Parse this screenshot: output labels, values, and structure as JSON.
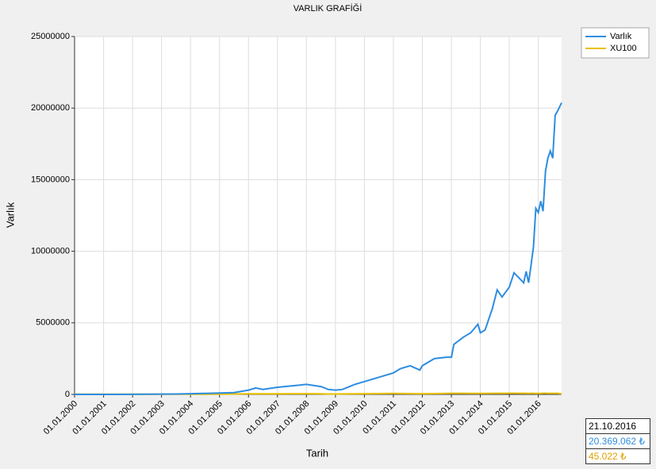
{
  "chart_data": {
    "type": "line",
    "title": "VARLIK GRAFİĞİ",
    "x_label": "Tarih",
    "y_label": "Varlık",
    "x": [
      "01.01.2000",
      "01.07.2000",
      "01.01.2001",
      "01.07.2001",
      "01.01.2002",
      "01.07.2002",
      "01.01.2003",
      "01.07.2003",
      "01.01.2004",
      "01.07.2004",
      "01.01.2005",
      "01.07.2005",
      "01.01.2006",
      "01.04.2006",
      "01.07.2006",
      "01.01.2007",
      "01.07.2007",
      "01.01.2008",
      "01.07.2008",
      "01.10.2008",
      "01.01.2009",
      "01.04.2009",
      "01.09.2009",
      "01.01.2010",
      "01.07.2010",
      "01.01.2011",
      "01.04.2011",
      "01.08.2011",
      "01.12.2011",
      "01.01.2012",
      "01.06.2012",
      "01.11.2012",
      "01.01.2013",
      "01.02.2013",
      "01.06.2013",
      "01.09.2013",
      "01.12.2013",
      "01.01.2014",
      "01.03.2014",
      "01.06.2014",
      "01.08.2014",
      "01.10.2014",
      "01.01.2015",
      "01.03.2015",
      "01.07.2015",
      "01.08.2015",
      "01.09.2015",
      "01.10.2015",
      "01.11.2015",
      "01.12.2015",
      "01.01.2016",
      "01.02.2016",
      "01.03.2016",
      "01.04.2016",
      "01.05.2016",
      "01.06.2016",
      "01.07.2016",
      "01.08.2016",
      "01.09.2016",
      "21.10.2016"
    ],
    "series": [
      {
        "name": "Varlık",
        "color": "#2e8de0",
        "values": [
          0,
          0,
          0,
          2000,
          5000,
          10000,
          20000,
          30000,
          50000,
          70000,
          100000,
          130000,
          300000,
          450000,
          350000,
          500000,
          600000,
          700000,
          550000,
          350000,
          300000,
          350000,
          700000,
          900000,
          1200000,
          1500000,
          1800000,
          2000000,
          1700000,
          2000000,
          2500000,
          2600000,
          2600000,
          3500000,
          4000000,
          4300000,
          4900000,
          4300000,
          4500000,
          6000000,
          7300000,
          6800000,
          7500000,
          8500000,
          7800000,
          8600000,
          7800000,
          9000000,
          10300000,
          13000000,
          12700000,
          13500000,
          12800000,
          15600000,
          16500000,
          17000000,
          16500000,
          19500000,
          19800000,
          20369062
        ]
      },
      {
        "name": "XU100",
        "color": "#e8c000",
        "values": [
          15000,
          10000,
          9000,
          11000,
          13000,
          11000,
          10000,
          13000,
          18000,
          19000,
          24000,
          29000,
          40000,
          43000,
          37000,
          39000,
          50000,
          52000,
          38000,
          30000,
          26000,
          33000,
          42000,
          52000,
          56000,
          66000,
          63000,
          55000,
          51000,
          52000,
          58000,
          70000,
          78000,
          80000,
          75000,
          70000,
          67000,
          64000,
          67000,
          78000,
          80000,
          78000,
          85000,
          83000,
          80000,
          78000,
          72000,
          78000,
          80000,
          72000,
          71000,
          74000,
          82000,
          84000,
          78000,
          77000,
          80000,
          76000,
          77000,
          45022
        ]
      }
    ],
    "xlim": [
      "01.01.2000",
      "21.10.2016"
    ],
    "xticks": [
      "01.01.2000",
      "01.01.2001",
      "01.01.2002",
      "01.01.2003",
      "01.01.2004",
      "01.01.2005",
      "01.01.2006",
      "01.01.2007",
      "01.01.2008",
      "01.01.2009",
      "01.01.2010",
      "01.01.2011",
      "01.01.2012",
      "01.01.2013",
      "01.01.2014",
      "01.01.2015",
      "01.01.2016"
    ],
    "ylim": [
      0,
      25000000
    ],
    "yticks": [
      0,
      5000000,
      10000000,
      15000000,
      20000000,
      25000000
    ],
    "grid": true,
    "legend": "top-right"
  },
  "info": {
    "date": "21.10.2016",
    "varlik": "20.369.062 ₺",
    "xu100": "45.022 ₺"
  }
}
